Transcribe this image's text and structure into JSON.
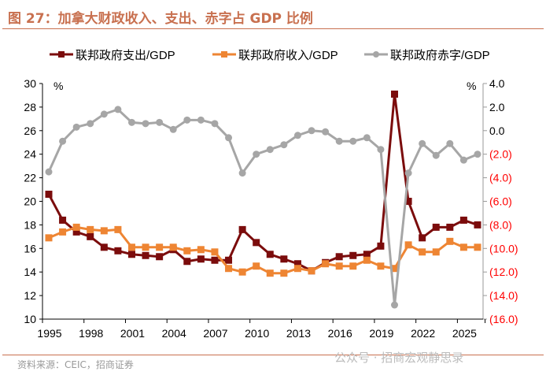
{
  "title": "图 27：加拿大财政收入、支出、赤字占 GDP 比例",
  "source": "资料来源：CEIC，招商证券",
  "watermark": "公众号 · 招商宏观静思录",
  "chart_data": {
    "type": "line",
    "title": "图 27：加拿大财政收入、支出、赤字占 GDP 比例",
    "x": [
      1995,
      1996,
      1997,
      1998,
      1999,
      2000,
      2001,
      2002,
      2003,
      2004,
      2005,
      2006,
      2007,
      2008,
      2009,
      2010,
      2011,
      2012,
      2013,
      2014,
      2015,
      2016,
      2017,
      2018,
      2019,
      2020,
      2021,
      2022,
      2023,
      2024,
      2025,
      2026
    ],
    "x_tick_labels": [
      "1995",
      "1998",
      "2001",
      "2004",
      "2007",
      "2010",
      "2013",
      "2016",
      "2019",
      "2022",
      "2025"
    ],
    "y_left": {
      "unit": "%",
      "ylim": [
        10,
        30
      ],
      "ticks": [
        "10",
        "12",
        "14",
        "16",
        "18",
        "20",
        "22",
        "24",
        "26",
        "28",
        "30"
      ]
    },
    "y_right": {
      "unit": "%",
      "ylim": [
        -16,
        4
      ],
      "ticks": [
        "(16.0)",
        "(14.0)",
        "(12.0)",
        "(10.0)",
        "(8.0)",
        "(6.0)",
        "(4.0)",
        "(2.0)",
        "0.0",
        "2.0",
        "4.0"
      ],
      "negative_color": "#ff0000"
    },
    "legend_position": "top",
    "grid": false,
    "series": [
      {
        "name": "联邦政府支出/GDP",
        "axis": "left",
        "color": "#7b0c0c",
        "marker": "square",
        "values": [
          20.6,
          18.4,
          17.4,
          17.0,
          16.1,
          15.8,
          15.5,
          15.4,
          15.3,
          15.9,
          14.9,
          15.1,
          15.0,
          15.0,
          17.6,
          16.5,
          15.5,
          15.1,
          14.7,
          14.1,
          14.8,
          15.3,
          15.4,
          15.5,
          16.2,
          29.1,
          20.0,
          16.9,
          17.8,
          17.8,
          18.4,
          18.0
        ]
      },
      {
        "name": "联邦政府收入/GDP",
        "axis": "left",
        "color": "#ee8533",
        "marker": "square",
        "values": [
          16.9,
          17.4,
          17.8,
          17.6,
          17.5,
          17.6,
          16.1,
          16.1,
          16.1,
          16.1,
          15.8,
          15.9,
          15.7,
          14.3,
          14.0,
          14.5,
          13.9,
          13.9,
          14.3,
          14.1,
          14.7,
          14.5,
          14.5,
          15.0,
          14.5,
          14.3,
          16.3,
          15.7,
          15.7,
          16.6,
          16.1,
          16.1
        ]
      },
      {
        "name": "联邦政府赤字/GDP",
        "axis": "right",
        "color": "#a6a6a6",
        "marker": "circle",
        "values": [
          -3.5,
          -0.9,
          0.3,
          0.6,
          1.4,
          1.8,
          0.7,
          0.6,
          0.7,
          0.1,
          0.9,
          0.9,
          0.6,
          -0.6,
          -3.6,
          -2.0,
          -1.6,
          -1.2,
          -0.4,
          0.0,
          -0.1,
          -0.9,
          -0.9,
          -0.6,
          -1.6,
          -14.8,
          -3.6,
          -1.1,
          -2.1,
          -1.1,
          -2.5,
          -2.0
        ]
      }
    ]
  }
}
